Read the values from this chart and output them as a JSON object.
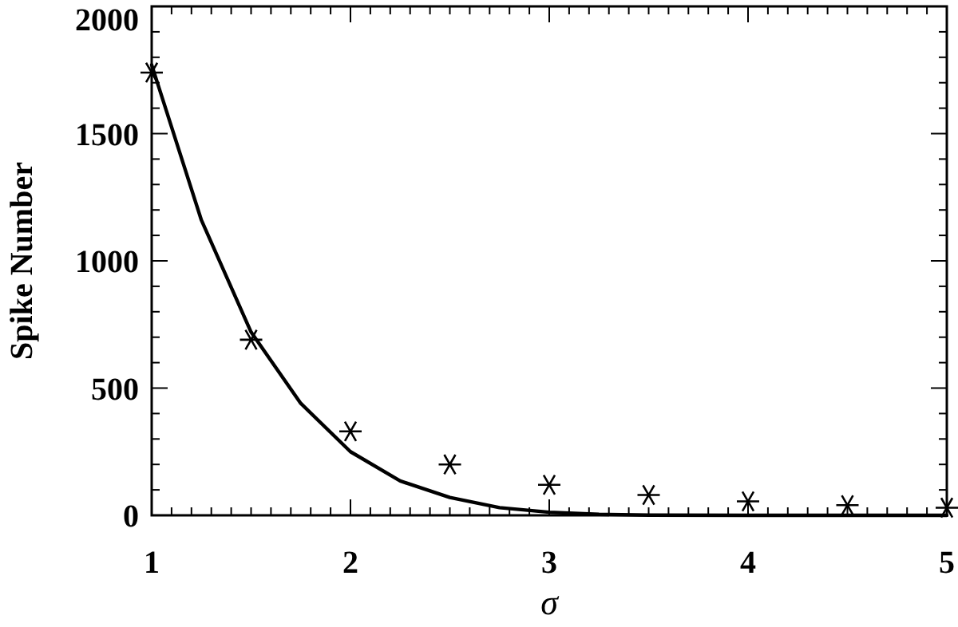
{
  "chart_data": {
    "type": "scatter",
    "xlabel": "σ",
    "ylabel": "Spike Number",
    "xlim": [
      1,
      5
    ],
    "ylim": [
      0,
      2000
    ],
    "xticks": [
      1,
      {
        "value": 1.1,
        "label": null
      },
      {
        "value": 1.2,
        "label": null
      },
      {
        "value": 1.3,
        "label": null
      },
      {
        "value": 1.4,
        "label": null
      },
      {
        "value": 1.5,
        "label": null
      },
      {
        "value": 1.6,
        "label": null
      },
      {
        "value": 1.7,
        "label": null
      },
      {
        "value": 1.8,
        "label": null
      },
      {
        "value": 1.9,
        "label": null
      },
      2,
      {
        "value": 2.1,
        "label": null
      },
      {
        "value": 2.2,
        "label": null
      },
      {
        "value": 2.3,
        "label": null
      },
      {
        "value": 2.4,
        "label": null
      },
      {
        "value": 2.5,
        "label": null
      },
      {
        "value": 2.6,
        "label": null
      },
      {
        "value": 2.7,
        "label": null
      },
      {
        "value": 2.8,
        "label": null
      },
      {
        "value": 2.9,
        "label": null
      },
      3,
      {
        "value": 3.1,
        "label": null
      },
      {
        "value": 3.2,
        "label": null
      },
      {
        "value": 3.3,
        "label": null
      },
      {
        "value": 3.4,
        "label": null
      },
      {
        "value": 3.5,
        "label": null
      },
      {
        "value": 3.6,
        "label": null
      },
      {
        "value": 3.7,
        "label": null
      },
      {
        "value": 3.8,
        "label": null
      },
      {
        "value": 3.9,
        "label": null
      },
      4,
      {
        "value": 4.1,
        "label": null
      },
      {
        "value": 4.2,
        "label": null
      },
      {
        "value": 4.3,
        "label": null
      },
      {
        "value": 4.4,
        "label": null
      },
      {
        "value": 4.5,
        "label": null
      },
      {
        "value": 4.6,
        "label": null
      },
      {
        "value": 4.7,
        "label": null
      },
      {
        "value": 4.8,
        "label": null
      },
      {
        "value": 4.9,
        "label": null
      },
      5
    ],
    "yticks": [
      0,
      {
        "value": 100,
        "label": null
      },
      {
        "value": 200,
        "label": null
      },
      {
        "value": 300,
        "label": null
      },
      {
        "value": 400,
        "label": null
      },
      500,
      {
        "value": 600,
        "label": null
      },
      {
        "value": 700,
        "label": null
      },
      {
        "value": 800,
        "label": null
      },
      {
        "value": 900,
        "label": null
      },
      1000,
      {
        "value": 1100,
        "label": null
      },
      {
        "value": 1200,
        "label": null
      },
      {
        "value": 1300,
        "label": null
      },
      {
        "value": 1400,
        "label": null
      },
      1500,
      {
        "value": 1600,
        "label": null
      },
      {
        "value": 1700,
        "label": null
      },
      {
        "value": 1800,
        "label": null
      },
      {
        "value": 1900,
        "label": null
      },
      2000
    ],
    "grid": false,
    "series": [
      {
        "color": "#000000",
        "marker": "cross",
        "x": [
          1,
          1.5,
          2,
          2.5,
          3,
          3.5,
          4,
          4.5,
          5
        ],
        "values": [
          1740,
          690,
          330,
          200,
          120,
          80,
          55,
          40,
          30
        ]
      },
      {
        "type": "line",
        "color": "#000000",
        "marker": "none",
        "line_style": "solid",
        "x": [
          1,
          1.25,
          1.5,
          1.75,
          2,
          2.25,
          2.5,
          2.75,
          3,
          3.25,
          3.5,
          4,
          4.5,
          5
        ],
        "values": [
          1770,
          1160,
          720,
          440,
          250,
          135,
          70,
          30,
          12,
          4,
          1,
          0,
          0,
          0
        ]
      }
    ]
  }
}
